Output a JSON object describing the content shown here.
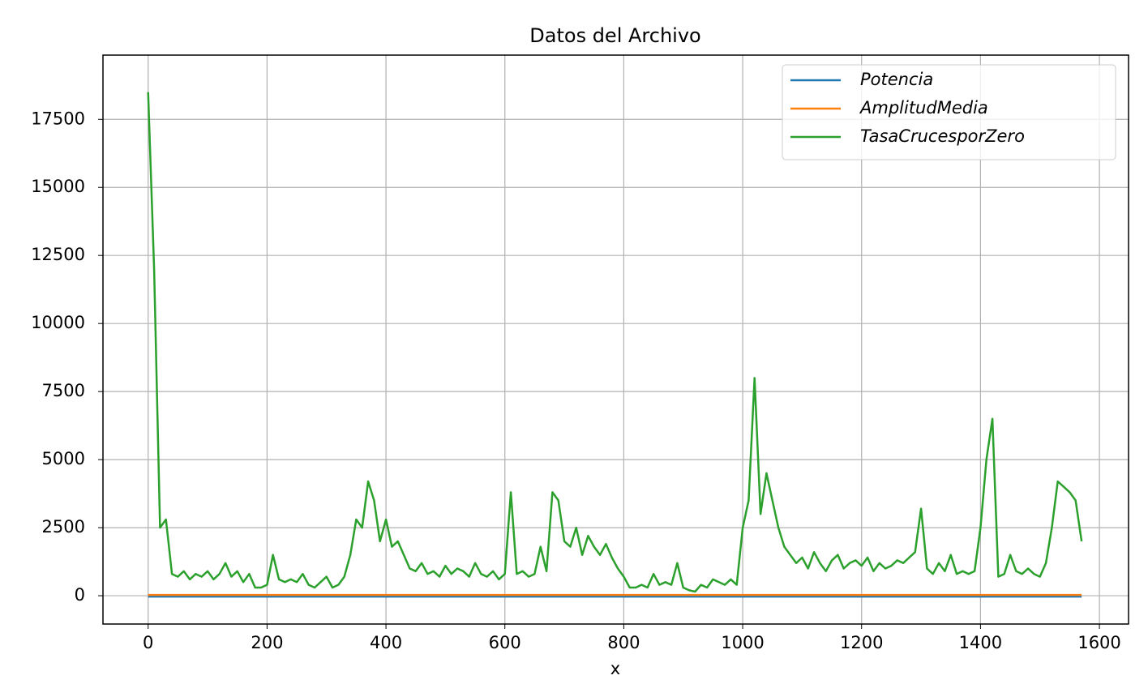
{
  "chart_data": {
    "type": "line",
    "title": "Datos del Archivo",
    "x_label": "x",
    "x": [
      0,
      10,
      20,
      30,
      40,
      50,
      60,
      70,
      80,
      90,
      100,
      110,
      120,
      130,
      140,
      150,
      160,
      170,
      180,
      190,
      200,
      210,
      220,
      230,
      240,
      250,
      260,
      270,
      280,
      290,
      300,
      310,
      320,
      330,
      340,
      350,
      360,
      370,
      380,
      390,
      400,
      410,
      420,
      430,
      440,
      450,
      460,
      470,
      480,
      490,
      500,
      510,
      520,
      530,
      540,
      550,
      560,
      570,
      580,
      590,
      600,
      610,
      620,
      630,
      640,
      650,
      660,
      670,
      680,
      690,
      700,
      710,
      720,
      730,
      740,
      750,
      760,
      770,
      780,
      790,
      800,
      810,
      820,
      830,
      840,
      850,
      860,
      870,
      880,
      890,
      900,
      910,
      920,
      930,
      940,
      950,
      960,
      970,
      980,
      990,
      1000,
      1010,
      1020,
      1030,
      1040,
      1050,
      1060,
      1070,
      1080,
      1090,
      1100,
      1110,
      1120,
      1130,
      1140,
      1150,
      1160,
      1170,
      1180,
      1190,
      1200,
      1210,
      1220,
      1230,
      1240,
      1250,
      1260,
      1270,
      1280,
      1290,
      1300,
      1310,
      1320,
      1330,
      1340,
      1350,
      1360,
      1370,
      1380,
      1390,
      1400,
      1410,
      1420,
      1430,
      1440,
      1450,
      1460,
      1470,
      1480,
      1490,
      1500,
      1510,
      1520,
      1530,
      1540,
      1550,
      1560,
      1570
    ],
    "series": [
      {
        "name": "Potencia",
        "color": "#1f77b4",
        "values": [
          -30,
          -30,
          -30,
          -30,
          -30,
          -30,
          -30,
          -30,
          -30,
          -30,
          -30,
          -30,
          -30,
          -30,
          -30,
          -30,
          -30,
          -30,
          -30,
          -30,
          -30,
          -30,
          -30,
          -30,
          -30,
          -30,
          -30,
          -30,
          -30,
          -30,
          -30,
          -30,
          -30,
          -30,
          -30,
          -30,
          -30,
          -30,
          -30,
          -30,
          -30,
          -30,
          -30,
          -30,
          -30,
          -30,
          -30,
          -30,
          -30,
          -30,
          -30,
          -30,
          -30,
          -30,
          -30,
          -30,
          -30,
          -30,
          -30,
          -30,
          -30,
          -30,
          -30,
          -30,
          -30,
          -30,
          -30,
          -30,
          -30,
          -30,
          -30,
          -30,
          -30,
          -30,
          -30,
          -30,
          -30,
          -30,
          -30,
          -30,
          -30,
          -30,
          -30,
          -30,
          -30,
          -30,
          -30,
          -30,
          -30,
          -30,
          -30,
          -30,
          -30,
          -30,
          -30,
          -30,
          -30,
          -30,
          -30,
          -30,
          -30,
          -30,
          -30,
          -30,
          -30,
          -30,
          -30,
          -30,
          -30,
          -30,
          -30,
          -30,
          -30,
          -30,
          -30,
          -30,
          -30,
          -30,
          -30,
          -30,
          -30,
          -30,
          -30,
          -30,
          -30,
          -30,
          -30,
          -30,
          -30,
          -30,
          -30,
          -30,
          -30,
          -30,
          -30,
          -30,
          -30,
          -30,
          -30,
          -30,
          -30,
          -30,
          -30,
          -30,
          -30,
          -30,
          -30,
          -30,
          -30,
          -30,
          -30,
          -30,
          -30,
          -30,
          -30,
          -30,
          -30,
          -30
        ]
      },
      {
        "name": "AmplitudMedia",
        "color": "#ff7f0e",
        "values": [
          30,
          30,
          30,
          30,
          30,
          30,
          30,
          30,
          30,
          30,
          30,
          30,
          30,
          30,
          30,
          30,
          30,
          30,
          30,
          30,
          30,
          30,
          30,
          30,
          30,
          30,
          30,
          30,
          30,
          30,
          30,
          30,
          30,
          30,
          30,
          30,
          30,
          30,
          30,
          30,
          30,
          30,
          30,
          30,
          30,
          30,
          30,
          30,
          30,
          30,
          30,
          30,
          30,
          30,
          30,
          30,
          30,
          30,
          30,
          30,
          30,
          30,
          30,
          30,
          30,
          30,
          30,
          30,
          30,
          30,
          30,
          30,
          30,
          30,
          30,
          30,
          30,
          30,
          30,
          30,
          30,
          30,
          30,
          30,
          30,
          30,
          30,
          30,
          30,
          30,
          30,
          30,
          30,
          30,
          30,
          30,
          30,
          30,
          30,
          30,
          30,
          30,
          30,
          30,
          30,
          30,
          30,
          30,
          30,
          30,
          30,
          30,
          30,
          30,
          30,
          30,
          30,
          30,
          30,
          30,
          30,
          30,
          30,
          30,
          30,
          30,
          30,
          30,
          30,
          30,
          30,
          30,
          30,
          30,
          30,
          30,
          30,
          30,
          30,
          30,
          30,
          30,
          30,
          30,
          30,
          30,
          30,
          30,
          30,
          30,
          30,
          30,
          30,
          30,
          30,
          30,
          30,
          30
        ]
      },
      {
        "name": "TasaCrucesporZero",
        "color": "#2ca02c",
        "values": [
          18500,
          12000,
          2500,
          2800,
          800,
          700,
          900,
          600,
          800,
          700,
          900,
          600,
          800,
          1200,
          700,
          900,
          500,
          800,
          300,
          300,
          400,
          1500,
          600,
          500,
          600,
          500,
          800,
          400,
          300,
          500,
          700,
          300,
          400,
          700,
          1500,
          2800,
          2500,
          4200,
          3500,
          2000,
          2800,
          1800,
          2000,
          1500,
          1000,
          900,
          1200,
          800,
          900,
          700,
          1100,
          800,
          1000,
          900,
          700,
          1200,
          800,
          700,
          900,
          600,
          800,
          3800,
          800,
          900,
          700,
          800,
          1800,
          900,
          3800,
          3500,
          2000,
          1800,
          2500,
          1500,
          2200,
          1800,
          1500,
          1900,
          1400,
          1000,
          700,
          300,
          300,
          400,
          300,
          800,
          400,
          500,
          400,
          1200,
          300,
          200,
          150,
          400,
          300,
          600,
          500,
          400,
          600,
          400,
          2500,
          3500,
          8000,
          3000,
          4500,
          3500,
          2500,
          1800,
          1500,
          1200,
          1400,
          1000,
          1600,
          1200,
          900,
          1300,
          1500,
          1000,
          1200,
          1300,
          1100,
          1400,
          900,
          1200,
          1000,
          1100,
          1300,
          1200,
          1400,
          1600,
          3200,
          1000,
          800,
          1200,
          900,
          1500,
          800,
          900,
          800,
          900,
          2500,
          5000,
          6500,
          700,
          800,
          1500,
          900,
          800,
          1000,
          800,
          700,
          1200,
          2500,
          4200,
          4000,
          3800,
          3500,
          2000
        ]
      }
    ],
    "xlim": [
      -76,
      1649
    ],
    "ylim": [
      -1040,
      19860
    ],
    "xticks": [
      0,
      200,
      400,
      600,
      800,
      1000,
      1200,
      1400,
      1600
    ],
    "yticks": [
      0,
      2500,
      5000,
      7500,
      10000,
      12500,
      15000,
      17500
    ],
    "grid": true,
    "legend": "upper right"
  }
}
